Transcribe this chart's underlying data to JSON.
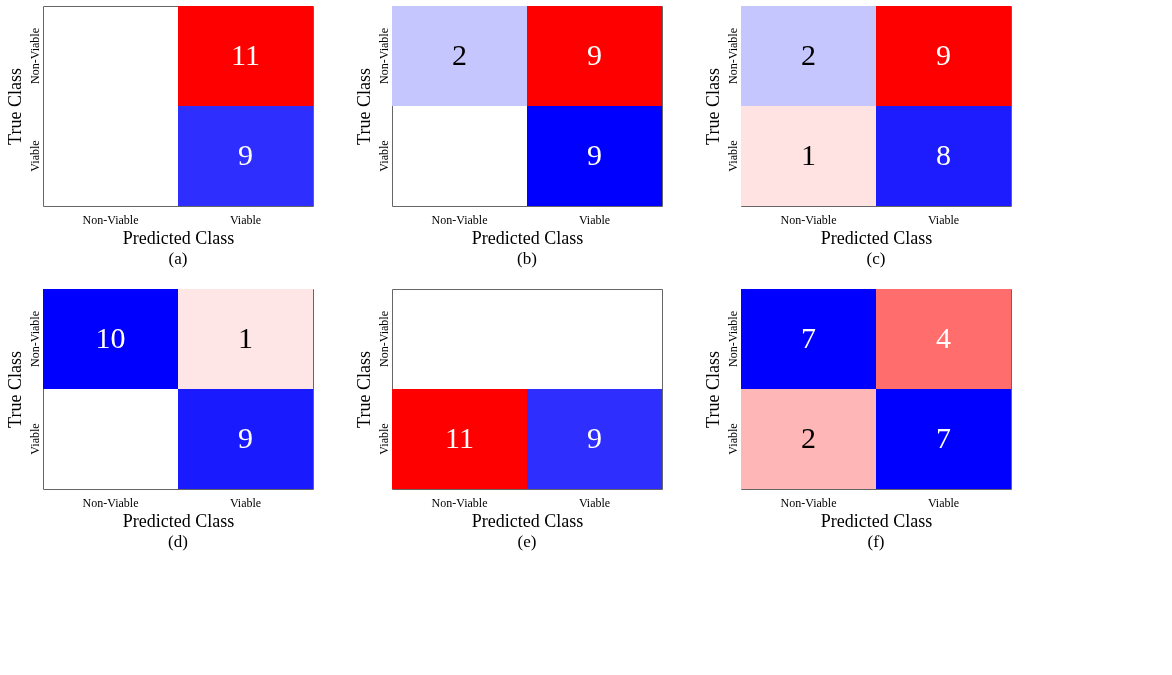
{
  "chart_data": [
    {
      "type": "heatmap",
      "title": "(a)",
      "xlabel": "Predicted Class",
      "ylabel": "True Class",
      "categories": [
        "Non-Viable",
        "Viable"
      ],
      "y_categories": [
        "Non-Viable",
        "Viable"
      ],
      "cells": [
        [
          null,
          11
        ],
        [
          null,
          9
        ]
      ],
      "data_labels": true
    },
    {
      "type": "heatmap",
      "title": "(b)",
      "xlabel": "Predicted Class",
      "ylabel": "True Class",
      "categories": [
        "Non-Viable",
        "Viable"
      ],
      "y_categories": [
        "Non-Viable",
        "Viable"
      ],
      "cells": [
        [
          2,
          9
        ],
        [
          null,
          9
        ]
      ],
      "data_labels": true
    },
    {
      "type": "heatmap",
      "title": "(c)",
      "xlabel": "Predicted Class",
      "ylabel": "True Class",
      "categories": [
        "Non-Viable",
        "Viable"
      ],
      "y_categories": [
        "Non-Viable",
        "Viable"
      ],
      "cells": [
        [
          2,
          9
        ],
        [
          1,
          8
        ]
      ],
      "data_labels": true
    },
    {
      "type": "heatmap",
      "title": "(d)",
      "xlabel": "Predicted Class",
      "ylabel": "True Class",
      "categories": [
        "Non-Viable",
        "Viable"
      ],
      "y_categories": [
        "Non-Viable",
        "Viable"
      ],
      "cells": [
        [
          10,
          1
        ],
        [
          null,
          9
        ]
      ],
      "data_labels": true
    },
    {
      "type": "heatmap",
      "title": "(e)",
      "xlabel": "Predicted Class",
      "ylabel": "True Class",
      "categories": [
        "Non-Viable",
        "Viable"
      ],
      "y_categories": [
        "Non-Viable",
        "Viable"
      ],
      "cells": [
        [
          null,
          null
        ],
        [
          11,
          9
        ]
      ],
      "data_labels": true
    },
    {
      "type": "heatmap",
      "title": "(f)",
      "xlabel": "Predicted Class",
      "ylabel": "True Class",
      "categories": [
        "Non-Viable",
        "Viable"
      ],
      "y_categories": [
        "Non-Viable",
        "Viable"
      ],
      "cells": [
        [
          7,
          4
        ],
        [
          2,
          7
        ]
      ],
      "data_labels": true
    }
  ]
}
